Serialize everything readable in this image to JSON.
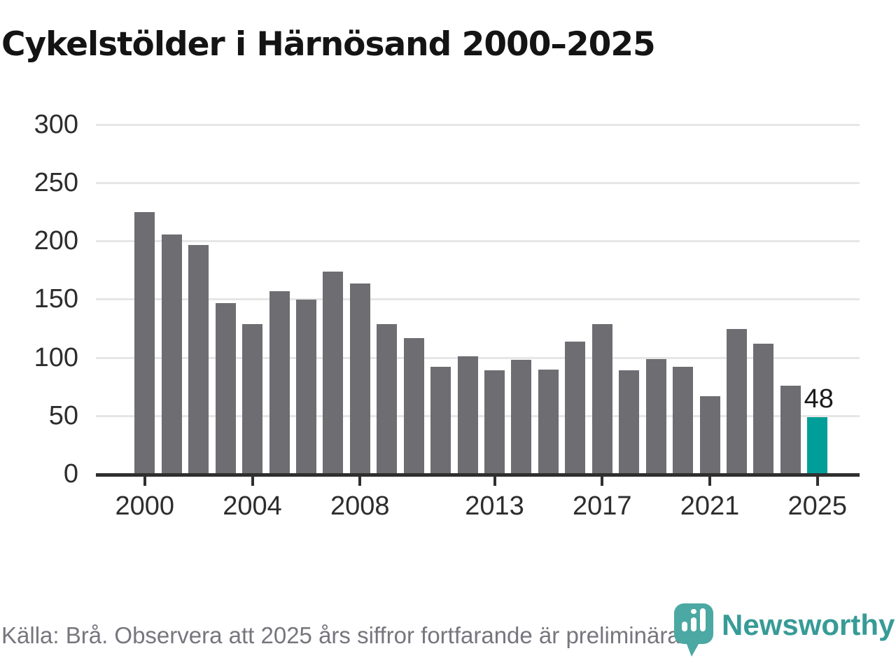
{
  "title": "Cykelstölder i Härnösand 2000–2025",
  "chart_data": {
    "type": "bar",
    "title": "Cykelstölder i Härnösand 2000–2025",
    "x": [
      2000,
      2001,
      2002,
      2003,
      2004,
      2005,
      2006,
      2007,
      2008,
      2009,
      2010,
      2011,
      2012,
      2013,
      2014,
      2015,
      2016,
      2017,
      2018,
      2019,
      2020,
      2021,
      2022,
      2023,
      2024,
      2025
    ],
    "values": [
      224,
      205,
      196,
      146,
      128,
      156,
      149,
      173,
      163,
      128,
      116,
      91,
      100,
      88,
      97,
      89,
      113,
      128,
      88,
      98,
      91,
      66,
      124,
      111,
      75,
      48
    ],
    "xlabel": "",
    "ylabel": "",
    "ylim": [
      0,
      300
    ],
    "yticks": [
      0,
      50,
      100,
      150,
      200,
      250,
      300
    ],
    "xticks": [
      2000,
      2004,
      2008,
      2013,
      2017,
      2021,
      2025
    ],
    "grid": "horizontal",
    "legend": "none",
    "bar_color": "#6d6d72",
    "highlight_year": 2025,
    "highlight_color": "#009e98",
    "annotation": {
      "year": 2025,
      "text": "48"
    }
  },
  "footer": {
    "source_text": "Källa: Brå. Observera att 2025 års siffror fortfarande är preliminära.",
    "logo_text": "Newsworthy"
  },
  "colors": {
    "axis": "#2f2f2f",
    "gridline": "#e6e6e6",
    "tick_label": "#2d2d2d",
    "title": "#141414",
    "footer_text": "#76767d",
    "logo_teal": "#379b96",
    "logo_pin": "#4ca8a3"
  }
}
